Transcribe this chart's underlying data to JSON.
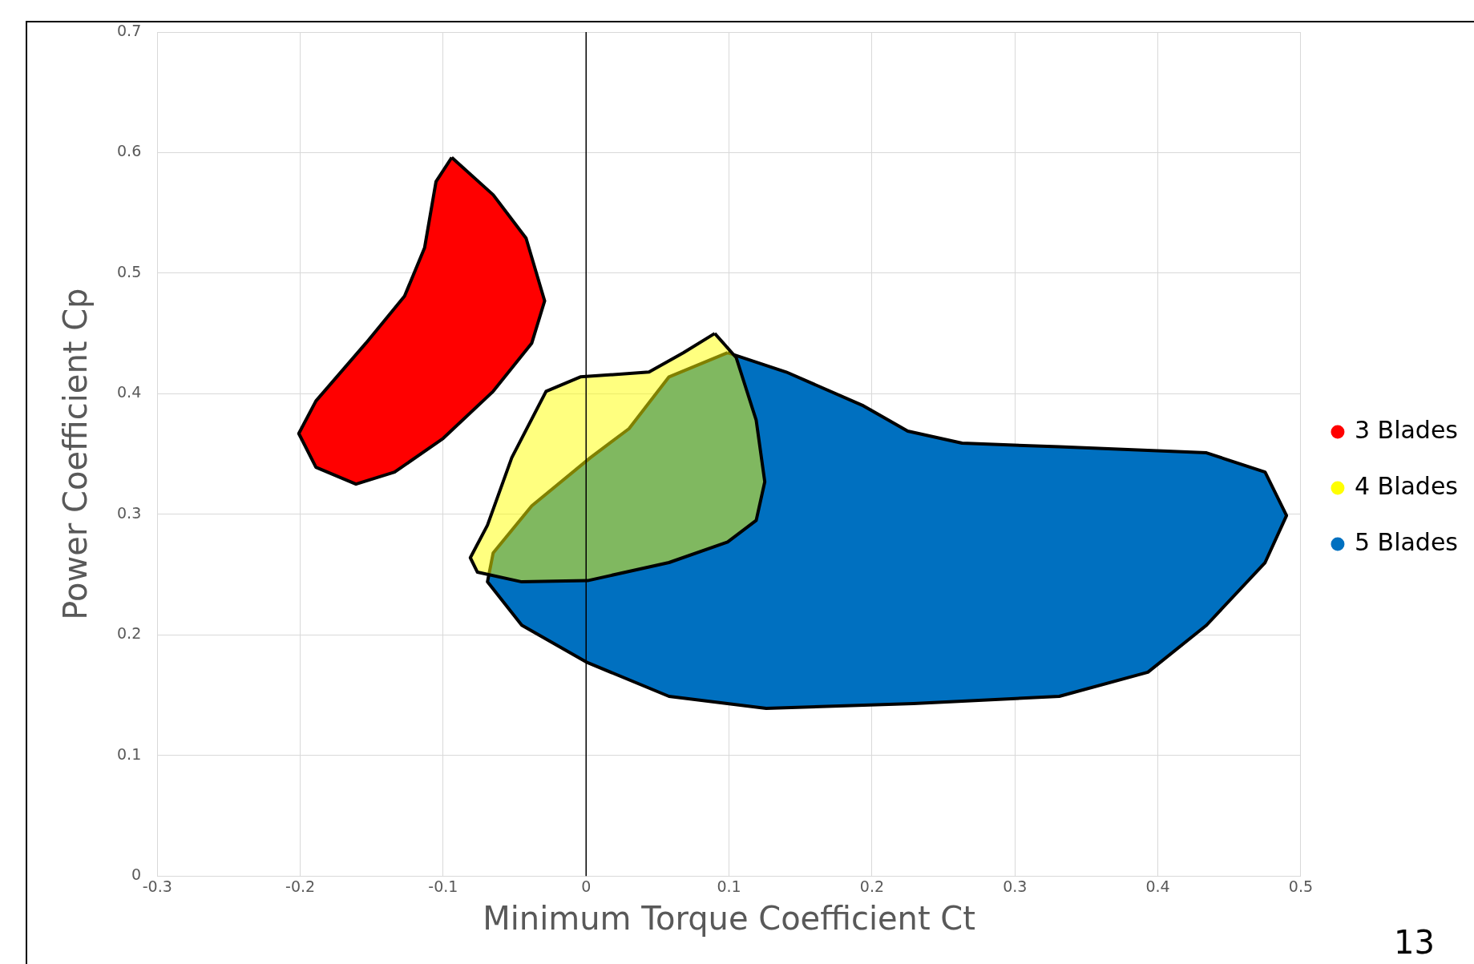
{
  "chart_data": {
    "type": "area",
    "xlabel": "Minimum Torque Coefficient Ct",
    "ylabel": "Power Coefficient Cp",
    "xlim": [
      -0.3,
      0.5
    ],
    "xticks": [
      -0.3,
      -0.2,
      -0.1,
      0,
      0.1,
      0.2,
      0.3,
      0.4,
      0.5
    ],
    "ylim": [
      0,
      0.7
    ],
    "yticks": [
      0,
      0.1,
      0.2,
      0.3,
      0.4,
      0.5,
      0.6,
      0.7
    ],
    "grid": true,
    "legend": "right",
    "marker": "none",
    "ref_lines": [
      {
        "axis": "x",
        "value": 0,
        "color": "#000000"
      }
    ],
    "annotations": [
      "13"
    ],
    "series": [
      {
        "name": "3 Blades",
        "color": "#ff0000",
        "x": [
          -0.094,
          -0.065,
          -0.042,
          -0.029,
          -0.038,
          -0.065,
          -0.1,
          -0.134,
          -0.161,
          -0.189,
          -0.201,
          -0.189,
          -0.154,
          -0.127,
          -0.113,
          -0.105
        ],
        "values": [
          0.596,
          0.565,
          0.529,
          0.477,
          0.442,
          0.402,
          0.363,
          0.335,
          0.325,
          0.339,
          0.367,
          0.394,
          0.442,
          0.481,
          0.521,
          0.576
        ]
      },
      {
        "name": "4 Blades",
        "color": "#ffff00",
        "x": [
          0.09,
          0.105,
          0.119,
          0.125,
          0.119,
          0.099,
          0.058,
          0.001,
          -0.045,
          -0.076,
          -0.081,
          -0.069,
          -0.052,
          -0.028,
          -0.004,
          0.044,
          0.068
        ],
        "values": [
          0.45,
          0.43,
          0.378,
          0.327,
          0.295,
          0.277,
          0.26,
          0.245,
          0.244,
          0.252,
          0.264,
          0.291,
          0.347,
          0.402,
          0.414,
          0.418,
          0.434
        ]
      },
      {
        "name": "5 Blades",
        "color": "#0070c0",
        "x": [
          0.099,
          0.14,
          0.194,
          0.225,
          0.263,
          0.331,
          0.434,
          0.475,
          0.49,
          0.475,
          0.434,
          0.393,
          0.331,
          0.229,
          0.126,
          0.058,
          0.001,
          -0.045,
          -0.069,
          -0.065,
          -0.038,
          0.003,
          0.03,
          0.058
        ],
        "values": [
          0.434,
          0.418,
          0.39,
          0.369,
          0.359,
          0.356,
          0.351,
          0.335,
          0.299,
          0.26,
          0.208,
          0.169,
          0.149,
          0.143,
          0.139,
          0.149,
          0.177,
          0.208,
          0.244,
          0.268,
          0.307,
          0.347,
          0.371,
          0.414
        ]
      }
    ]
  }
}
